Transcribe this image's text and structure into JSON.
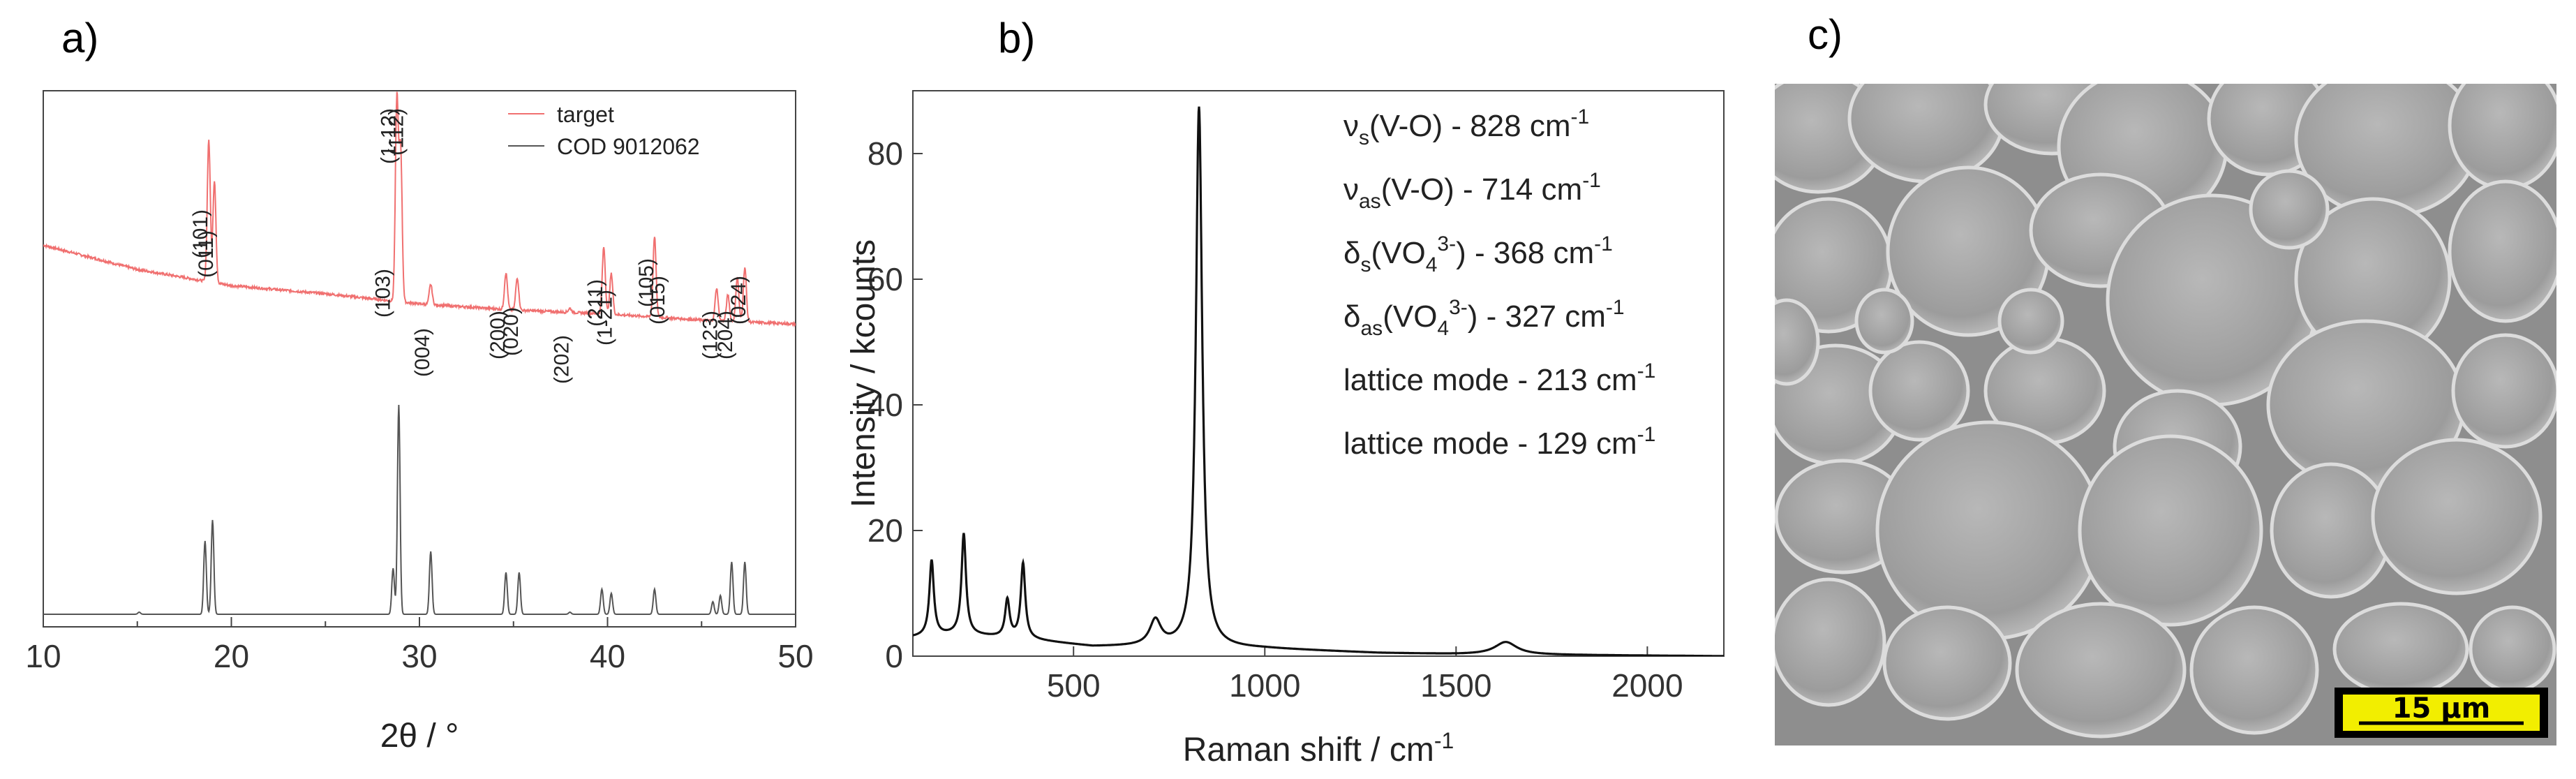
{
  "panels": {
    "a": {
      "label": "a)"
    },
    "b": {
      "label": "b)"
    },
    "c": {
      "label": "c)"
    }
  },
  "chart_data": [
    {
      "type": "line",
      "title": "",
      "xlabel": "2θ / °",
      "ylabel": "",
      "xlim": [
        10,
        50
      ],
      "xticks": [
        "10",
        "20",
        "30",
        "40",
        "50"
      ],
      "legend": {
        "position": "top-right",
        "entries": [
          "target",
          "COD 9012062"
        ]
      },
      "colors": {
        "target": "#f07070",
        "COD 9012062": "#555555"
      },
      "series": [
        {
          "name": "target",
          "baseline": [
            [
              10,
              0.72
            ],
            [
              15,
              0.6
            ],
            [
              20,
              0.52
            ],
            [
              25,
              0.48
            ],
            [
              30,
              0.43
            ],
            [
              35,
              0.4
            ],
            [
              40,
              0.38
            ],
            [
              45,
              0.35
            ],
            [
              50,
              0.33
            ]
          ],
          "peaks": [
            [
              18.8,
              0.7
            ],
            [
              19.1,
              0.5
            ],
            [
              28.8,
              1.0
            ],
            [
              29.0,
              0.75
            ],
            [
              30.6,
              0.1
            ],
            [
              34.6,
              0.18
            ],
            [
              35.2,
              0.16
            ],
            [
              38.0,
              0.02
            ],
            [
              39.8,
              0.33
            ],
            [
              40.2,
              0.2
            ],
            [
              42.5,
              0.4
            ],
            [
              45.8,
              0.16
            ],
            [
              46.4,
              0.13
            ],
            [
              46.9,
              0.22
            ],
            [
              47.3,
              0.27
            ]
          ]
        },
        {
          "name": "COD 9012062",
          "baseline": [
            [
              10,
              0.0
            ],
            [
              50,
              0.0
            ]
          ],
          "peaks": [
            [
              15.1,
              0.01
            ],
            [
              18.6,
              0.35
            ],
            [
              19.0,
              0.45
            ],
            [
              28.6,
              0.22
            ],
            [
              28.9,
              1.0
            ],
            [
              30.6,
              0.3
            ],
            [
              34.6,
              0.2
            ],
            [
              35.3,
              0.2
            ],
            [
              38.0,
              0.01
            ],
            [
              39.7,
              0.12
            ],
            [
              40.2,
              0.1
            ],
            [
              42.5,
              0.12
            ],
            [
              45.6,
              0.06
            ],
            [
              46.0,
              0.09
            ],
            [
              46.6,
              0.25
            ],
            [
              47.3,
              0.25
            ]
          ]
        }
      ],
      "annotations": [
        {
          "text": "(101)",
          "x": 18.8
        },
        {
          "text": "(011)",
          "x": 19.1
        },
        {
          "text": "(1-12)",
          "x": 28.8
        },
        {
          "text": "(112)",
          "x": 29.2
        },
        {
          "text": "(103)",
          "x": 28.5
        },
        {
          "text": "(004)",
          "x": 30.6
        },
        {
          "text": "(200)",
          "x": 34.6
        },
        {
          "text": "(020)",
          "x": 35.3
        },
        {
          "text": "(202)",
          "x": 38.0
        },
        {
          "text": "(211)",
          "x": 39.8
        },
        {
          "text": "(1-21)",
          "x": 40.3
        },
        {
          "text": "(105)",
          "x": 42.5
        },
        {
          "text": "(015)",
          "x": 43.1
        },
        {
          "text": "(123)",
          "x": 45.9
        },
        {
          "text": "(204)",
          "x": 46.7
        },
        {
          "text": "(024)",
          "x": 47.4
        }
      ]
    },
    {
      "type": "line",
      "title": "",
      "xlabel": "Raman shift / cm",
      "xlabel_sup": "-1",
      "ylabel": "Intensity / kcounts",
      "xlim": [
        80,
        2200
      ],
      "ylim": [
        0,
        90
      ],
      "xticks": [
        "500",
        "1000",
        "1500",
        "2000"
      ],
      "yticks": [
        "0",
        "20",
        "40",
        "60",
        "80"
      ],
      "color": "#111111",
      "baseline": [
        [
          80,
          3
        ],
        [
          200,
          3.5
        ],
        [
          400,
          2.5
        ],
        [
          550,
          1.5
        ],
        [
          700,
          1.5
        ],
        [
          1000,
          1.2
        ],
        [
          1300,
          0.5
        ],
        [
          1500,
          0.3
        ],
        [
          2200,
          0.0
        ]
      ],
      "peaks": [
        {
          "center": 129,
          "height": 12,
          "width": 14
        },
        {
          "center": 213,
          "height": 16,
          "width": 14
        },
        {
          "center": 327,
          "height": 6,
          "width": 14
        },
        {
          "center": 368,
          "height": 12,
          "width": 14
        },
        {
          "center": 714,
          "height": 4,
          "width": 35
        },
        {
          "center": 828,
          "height": 86,
          "width": 20
        },
        {
          "center": 1630,
          "height": 2,
          "width": 70
        }
      ],
      "annotations": [
        {
          "sym": "ν",
          "sub": "s",
          "mid": "(V-O)",
          "tail": " - 828 cm",
          "sup": "-1"
        },
        {
          "sym": "ν",
          "sub": "as",
          "mid": "(V-O)",
          "tail": " - 714 cm",
          "sup": "-1"
        },
        {
          "sym": "δ",
          "sub": "s",
          "mid": "(VO",
          "msub": "4",
          "msup": "3-",
          "mend": ")",
          "tail": " - 368 cm",
          "sup": "-1"
        },
        {
          "sym": "δ",
          "sub": "as",
          "mid": "(VO",
          "msub": "4",
          "msup": "3-",
          "mend": ")",
          "tail": " - 327 cm",
          "sup": "-1"
        },
        {
          "sym": "",
          "sub": "",
          "mid": "lattice mode",
          "tail": " - 213 cm",
          "sup": "-1"
        },
        {
          "sym": "",
          "sub": "",
          "mid": "lattice mode",
          "tail": " - 129 cm",
          "sup": "-1"
        }
      ]
    }
  ],
  "sem_image": {
    "scale_bar_label": "15 µm",
    "scale_bar_color": "#f2ee00"
  }
}
